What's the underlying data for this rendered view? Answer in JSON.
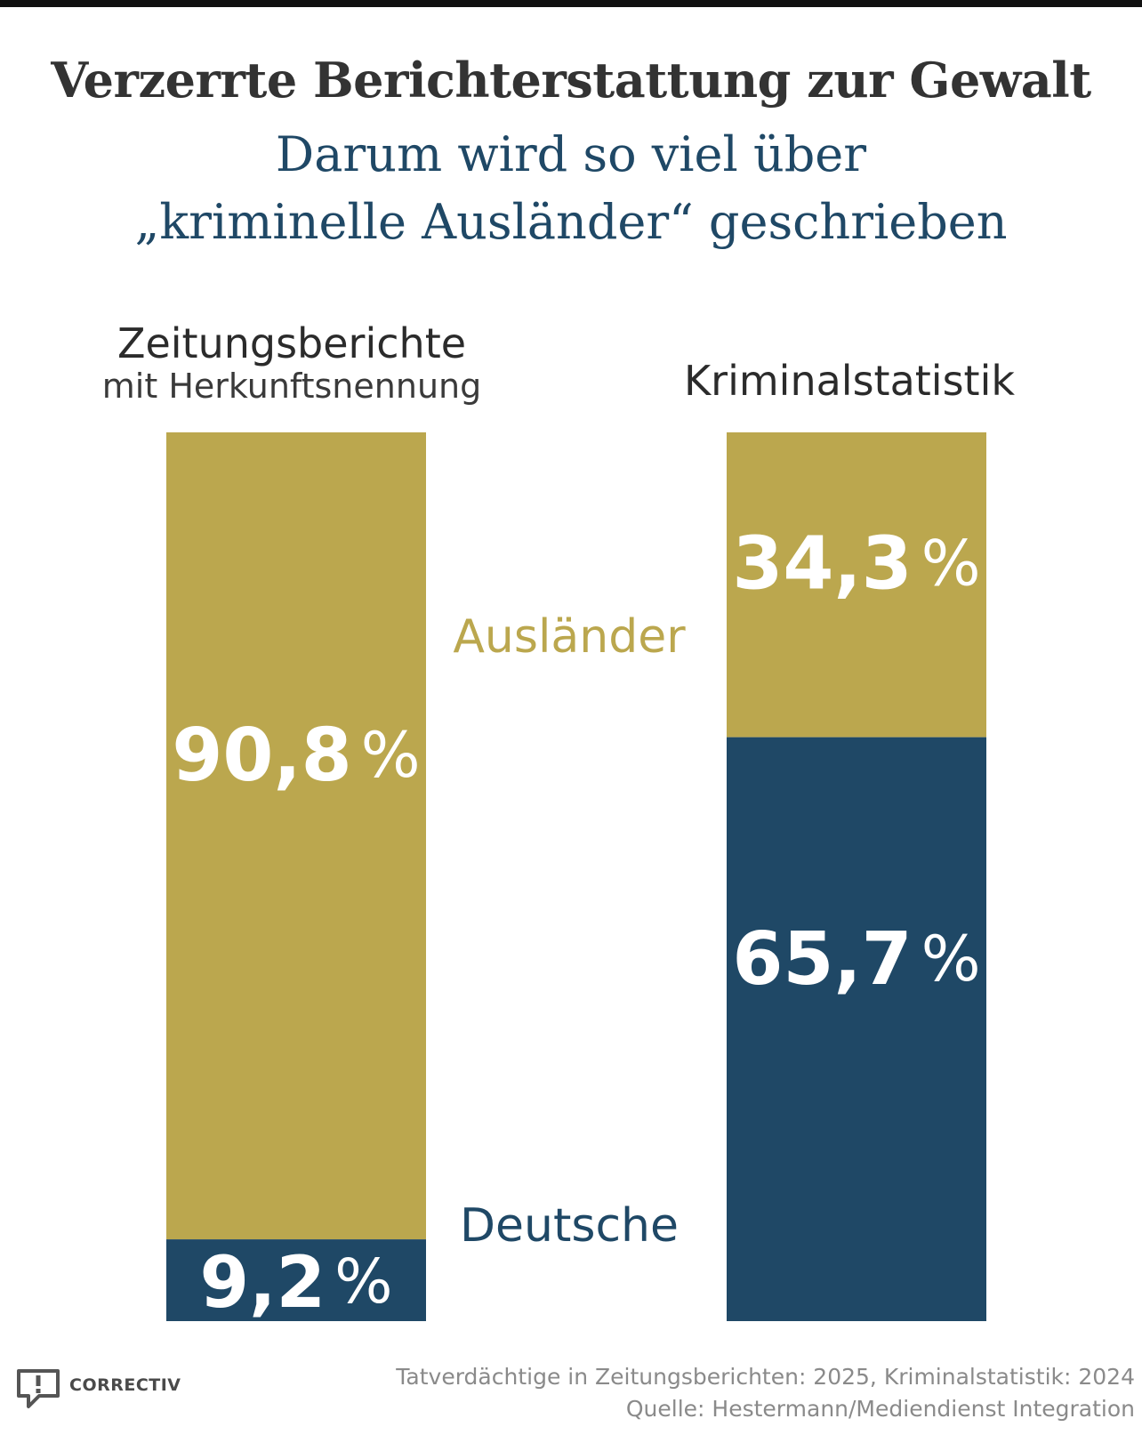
{
  "title": "Verzerrte Berichterstattung zur Gewalt",
  "subtitle": {
    "line1": "Darum wird so viel über",
    "line2": "„kriminelle Ausländer“ geschrieben"
  },
  "colors": {
    "auslaender": "#bba74e",
    "deutsche": "#1f4866",
    "label_text": "#ffffff"
  },
  "legend": {
    "auslaender": "Ausländer",
    "deutsche": "Deutsche"
  },
  "chart_data": {
    "type": "bar",
    "stacked": true,
    "unit": "%",
    "categories": [
      "Zeitungsberichte mit Herkunftsnennung",
      "Kriminalstatistik"
    ],
    "category_titles": [
      {
        "main": "Zeitungsberichte",
        "sub": "mit Herkunftsnennung"
      },
      {
        "main": "Kriminalstatistik",
        "sub": ""
      }
    ],
    "series": [
      {
        "name": "Deutsche",
        "values": [
          9.2,
          65.7
        ],
        "labels": [
          "9,2",
          "65,7"
        ]
      },
      {
        "name": "Ausländer",
        "values": [
          90.8,
          34.3
        ],
        "labels": [
          "90,8",
          "34,3"
        ]
      }
    ],
    "ylim": [
      0,
      100
    ]
  },
  "brand": "CORRECTIV",
  "footer": {
    "line1": "Tatverdächtige in Zeitungsberichten: 2025, Kriminalstatistik: 2024",
    "line2": "Quelle: Hestermann/Mediendienst Integration"
  }
}
